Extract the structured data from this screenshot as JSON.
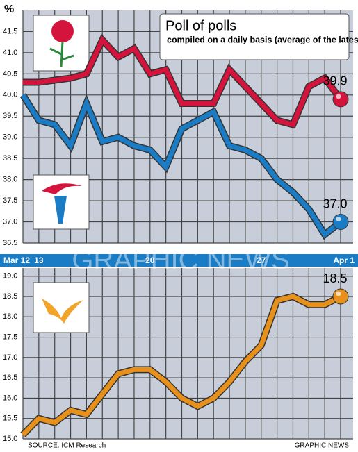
{
  "chart_data": [
    {
      "type": "line",
      "title": "Poll of polls",
      "subtitle": "compiled on a daily basis (average of the latest three polls) by ICM Research",
      "ylabel": "%",
      "categories": [
        "Mar 12",
        "13",
        null,
        null,
        null,
        null,
        null,
        null,
        "20",
        null,
        null,
        null,
        null,
        null,
        null,
        "27",
        null,
        null,
        null,
        null,
        "Apr 1"
      ],
      "ylim": [
        36.5,
        42
      ],
      "yticks": [
        36.5,
        {
          "value": 37,
          "label": "37.0"
        },
        37.5,
        {
          "value": 38,
          "label": "38.0"
        },
        38.5,
        {
          "value": 39,
          "label": "39.0"
        },
        39.5,
        {
          "value": 40,
          "label": "40.0"
        },
        40.5,
        {
          "value": 41,
          "label": "41.0"
        },
        41.5
      ],
      "grid": true,
      "series": [
        {
          "color": "#d4143c",
          "values": [
            40.3,
            40.3,
            40.35,
            40.4,
            40.5,
            41.3,
            40.9,
            41.1,
            40.5,
            40.6,
            39.8,
            39.8,
            39.8,
            40.6,
            40.2,
            39.8,
            39.4,
            39.3,
            40.2,
            40.4,
            39.9
          ],
          "value_labels": [
            null,
            null,
            null,
            null,
            null,
            null,
            null,
            null,
            null,
            null,
            null,
            null,
            null,
            null,
            null,
            null,
            null,
            null,
            null,
            null,
            "39.9"
          ]
        },
        {
          "color": "#1a7cc4",
          "values": [
            40.0,
            39.4,
            39.3,
            38.8,
            39.8,
            38.9,
            39.0,
            38.8,
            38.7,
            38.3,
            39.2,
            39.4,
            39.6,
            38.8,
            38.7,
            38.5,
            38.0,
            37.7,
            37.3,
            36.7,
            37.0
          ],
          "value_labels": [
            null,
            null,
            null,
            null,
            null,
            null,
            null,
            null,
            null,
            null,
            null,
            null,
            null,
            null,
            null,
            null,
            null,
            null,
            null,
            null,
            "37.0"
          ]
        }
      ]
    },
    {
      "type": "line",
      "ylim": [
        15,
        19.2
      ],
      "yticks": [
        {
          "value": 15,
          "label": "15.0"
        },
        15.5,
        {
          "value": 16,
          "label": "16.0"
        },
        16.5,
        {
          "value": 17,
          "label": "17.0"
        },
        17.5,
        {
          "value": 18,
          "label": "18.0"
        },
        18.5,
        {
          "value": 19,
          "label": "19.0"
        }
      ],
      "grid": true,
      "series": [
        {
          "color": "#e8901c",
          "values": [
            15.1,
            15.5,
            15.4,
            15.7,
            15.6,
            16.1,
            16.6,
            16.7,
            16.7,
            16.4,
            16.0,
            15.8,
            16.0,
            16.4,
            16.9,
            17.3,
            18.4,
            18.5,
            18.3,
            18.3,
            18.5
          ],
          "value_labels": [
            null,
            null,
            null,
            null,
            null,
            null,
            null,
            null,
            null,
            null,
            null,
            null,
            null,
            null,
            null,
            null,
            null,
            null,
            null,
            null,
            "18.5"
          ]
        }
      ]
    }
  ],
  "source": "SOURCE: ICM Research",
  "credit": "GRAPHIC NEWS",
  "watermark": "GRAPHIC NEWS"
}
